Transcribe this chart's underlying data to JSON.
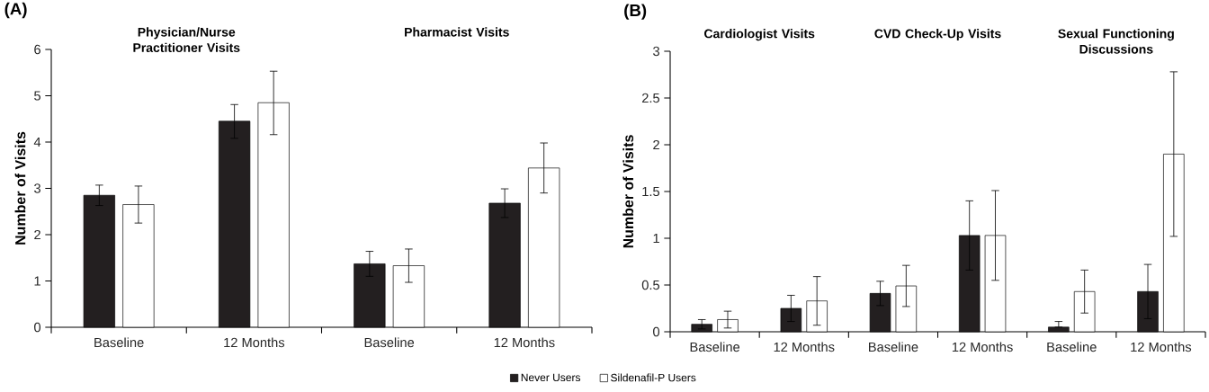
{
  "chart_data": [
    {
      "type": "bar",
      "title": "(A)",
      "ylabel": "Number of Visits",
      "categories": [
        "Baseline",
        "12 Months",
        "Baseline",
        "12 Months"
      ],
      "annotations": [
        "Physician/Nurse Practitioner Visits",
        "Pharmacist Visits"
      ],
      "series": [
        {
          "name": "Never Users",
          "color": "#231f20",
          "values": [
            2.85,
            4.45,
            1.37,
            2.68
          ],
          "errors": [
            [
              2.63,
              3.07
            ],
            [
              4.08,
              4.81
            ],
            [
              1.1,
              1.64
            ],
            [
              2.37,
              2.99
            ]
          ]
        },
        {
          "name": "Sildenafil-P Users",
          "color": "#ffffff",
          "values": [
            2.65,
            4.85,
            1.33,
            3.44
          ],
          "errors": [
            [
              2.25,
              3.05
            ],
            [
              4.16,
              5.53
            ],
            [
              0.97,
              1.69
            ],
            [
              2.9,
              3.98
            ]
          ]
        }
      ],
      "ylim": [
        0,
        6
      ],
      "yticks": [
        0,
        1,
        2,
        3,
        4,
        5,
        6
      ],
      "legend": "bottom"
    },
    {
      "type": "bar",
      "title": "(B)",
      "ylabel": "Number of Visits",
      "categories": [
        "Baseline",
        "12 Months",
        "Baseline",
        "12 Months",
        "Baseline",
        "12 Months"
      ],
      "annotations": [
        "Cardiologist Visits",
        "CVD Check-Up Visits",
        "Sexual Functioning Discussions"
      ],
      "series": [
        {
          "color": "#231f20",
          "values": [
            0.08,
            0.25,
            0.41,
            1.03,
            0.05,
            0.43
          ],
          "errors": [
            [
              0.03,
              0.13
            ],
            [
              0.11,
              0.39
            ],
            [
              0.28,
              0.54
            ],
            [
              0.66,
              1.4
            ],
            [
              0.05,
              0.11
            ],
            [
              0.14,
              0.72
            ]
          ]
        },
        {
          "color": "#ffffff",
          "values": [
            0.13,
            0.33,
            0.49,
            1.03,
            0.43,
            1.9
          ],
          "errors": [
            [
              0.04,
              0.22
            ],
            [
              0.07,
              0.59
            ],
            [
              0.27,
              0.71
            ],
            [
              0.55,
              1.51
            ],
            [
              0.2,
              0.66
            ],
            [
              1.02,
              2.78
            ]
          ]
        }
      ],
      "ylim": [
        0,
        3
      ],
      "yticks": [
        0,
        0.5,
        1,
        1.5,
        2,
        2.5,
        3
      ]
    }
  ]
}
